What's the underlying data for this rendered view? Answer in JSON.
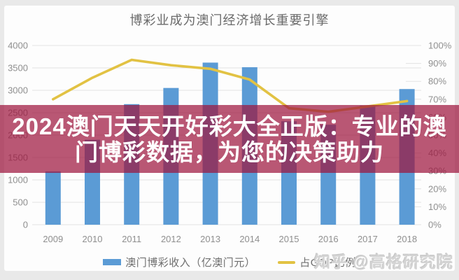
{
  "title": "博彩业成为澳门经济增长重要引擎",
  "banner": {
    "lines": [
      "2024澳门天天开好彩大全正版：专业的澳",
      "门博彩数据，为您的决策助力"
    ]
  },
  "legend": {
    "bar_label": "澳门博彩收入（亿澳门元）",
    "line_label": "占GDP比例"
  },
  "watermark": "知乎 @高格研究院",
  "colors": {
    "bar": "#5b9bd5",
    "line": "#e2c243",
    "banner": "rgba(158,22,62,0.72)",
    "grid": "#e3e3e3",
    "axis_text": "#8f8f8f",
    "title_text": "#6a6a6a",
    "frame_bg": "#e9e9e9",
    "chart_bg": "#fdfdfd",
    "watermark_text": "#d4d4d4"
  },
  "chart_data": {
    "type": "bar",
    "title": "博彩业成为澳门经济增长重要引擎",
    "categories": [
      "2009",
      "2010",
      "2011",
      "2012",
      "2013",
      "2014",
      "2015",
      "2016",
      "2017",
      "2018"
    ],
    "series": [
      {
        "name": "澳门博彩收入（亿澳门元）",
        "type": "bar",
        "axis": "left",
        "values": [
          1190,
          1896,
          2691,
          3052,
          3618,
          3515,
          2309,
          2232,
          2658,
          3028
        ]
      },
      {
        "name": "占GDP比例",
        "type": "line",
        "axis": "right",
        "unit": "%",
        "values": [
          70,
          82,
          92,
          89,
          87,
          81,
          65,
          63,
          66,
          69
        ]
      }
    ],
    "left_axis": {
      "min": 0,
      "max": 4000,
      "step": 500,
      "ticks": [
        "0",
        "500",
        "1000",
        "1500",
        "2000",
        "2500",
        "3000",
        "3500",
        "4000"
      ]
    },
    "right_axis": {
      "min": 0,
      "max": 100,
      "step": 10,
      "ticks": [
        "0%",
        "10%",
        "20%",
        "30%",
        "40%",
        "50%",
        "60%",
        "70%",
        "80%",
        "90%",
        "100%"
      ]
    },
    "grid": true,
    "legend_position": "bottom"
  }
}
